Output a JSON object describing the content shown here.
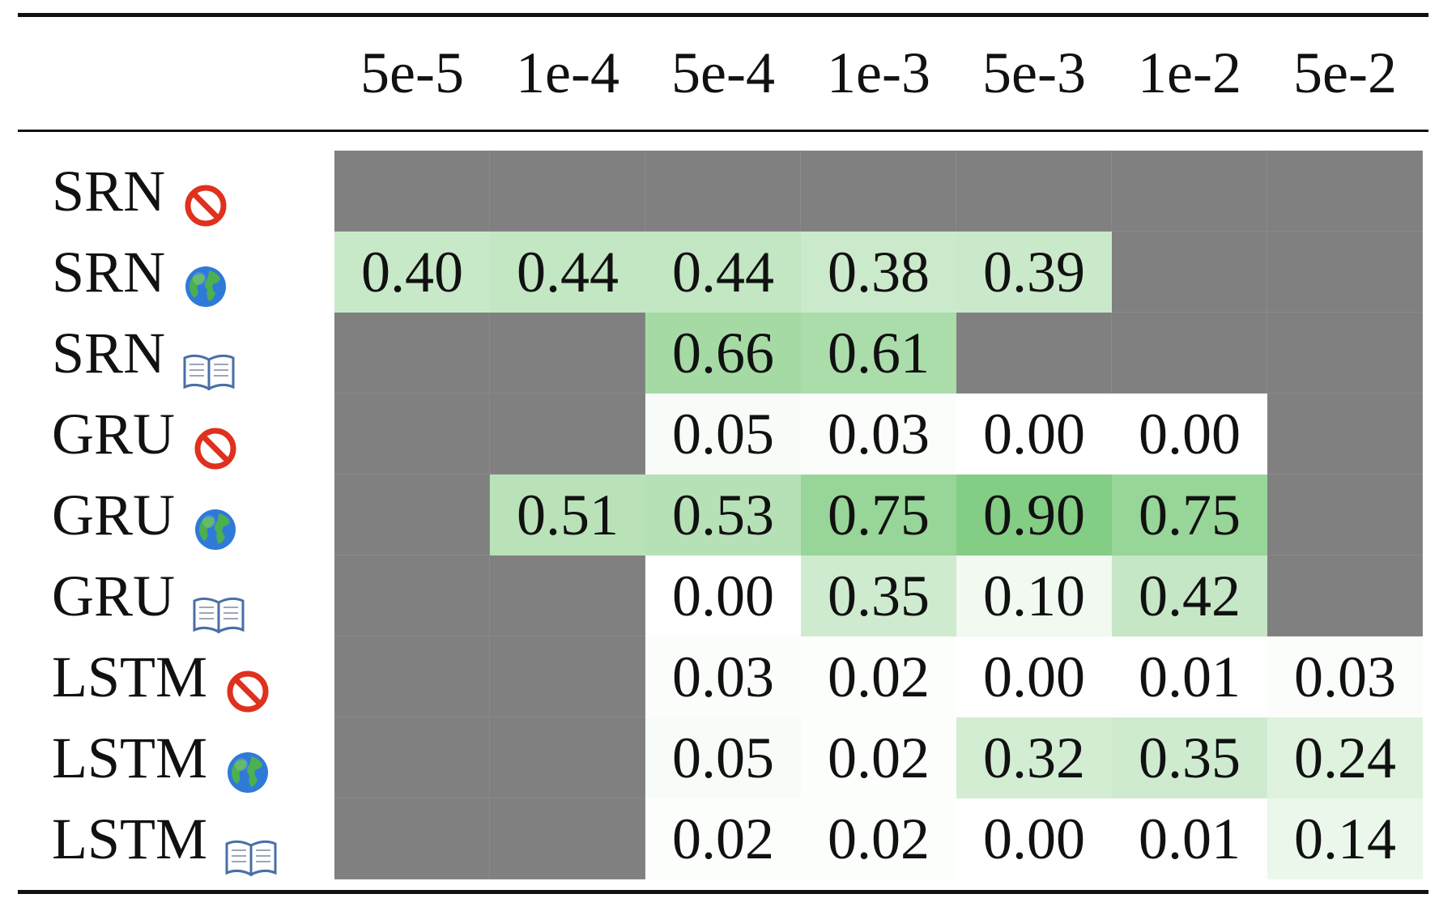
{
  "chart_data": {
    "type": "heatmap",
    "columns": [
      "5e-5",
      "1e-4",
      "5e-4",
      "1e-3",
      "5e-3",
      "1e-2",
      "5e-2"
    ],
    "rows": [
      {
        "model": "SRN",
        "condition": "no-sign-icon",
        "values": [
          null,
          null,
          null,
          null,
          null,
          null,
          null
        ]
      },
      {
        "model": "SRN",
        "condition": "globe-icon",
        "values": [
          "0.40",
          "0.44",
          "0.44",
          "0.38",
          "0.39",
          null,
          null
        ]
      },
      {
        "model": "SRN",
        "condition": "open-book-icon",
        "values": [
          null,
          null,
          "0.66",
          "0.61",
          null,
          null,
          null
        ]
      },
      {
        "model": "GRU",
        "condition": "no-sign-icon",
        "values": [
          null,
          null,
          "0.05",
          "0.03",
          "0.00",
          "0.00",
          null
        ]
      },
      {
        "model": "GRU",
        "condition": "globe-icon",
        "values": [
          null,
          "0.51",
          "0.53",
          "0.75",
          "0.90",
          "0.75",
          null
        ]
      },
      {
        "model": "GRU",
        "condition": "open-book-icon",
        "values": [
          null,
          null,
          "0.00",
          "0.35",
          "0.10",
          "0.42",
          null
        ]
      },
      {
        "model": "LSTM",
        "condition": "no-sign-icon",
        "values": [
          null,
          null,
          "0.03",
          "0.02",
          "0.00",
          "0.01",
          "0.03"
        ]
      },
      {
        "model": "LSTM",
        "condition": "globe-icon",
        "values": [
          null,
          null,
          "0.05",
          "0.02",
          "0.32",
          "0.35",
          "0.24"
        ]
      },
      {
        "model": "LSTM",
        "condition": "open-book-icon",
        "values": [
          null,
          null,
          "0.02",
          "0.02",
          "0.00",
          "0.01",
          "0.14"
        ]
      }
    ],
    "missing_color": "#808080",
    "color_low": "#ffffff",
    "color_high": "#76c776",
    "value_range": [
      0,
      1
    ]
  }
}
